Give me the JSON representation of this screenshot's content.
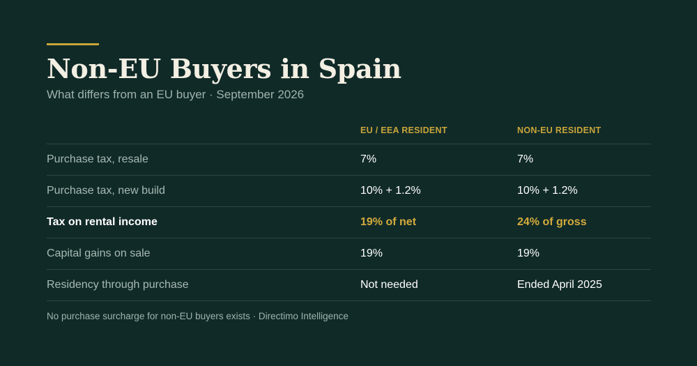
{
  "header": {
    "title": "Non-EU Buyers in Spain",
    "subtitle": "What differs from an EU buyer · September 2026"
  },
  "table": {
    "columns": [
      "",
      "EU / EEA RESIDENT",
      "NON-EU RESIDENT"
    ],
    "rows": [
      {
        "label": "Purchase tax, resale",
        "eu": "7%",
        "non_eu": "7%"
      },
      {
        "label": "Purchase tax, new build",
        "eu": "10% + 1.2%",
        "non_eu": "10% + 1.2%"
      },
      {
        "label": "Tax on rental income",
        "eu": "19% of net",
        "non_eu": "24% of gross"
      },
      {
        "label": "Capital gains on sale",
        "eu": "19%",
        "non_eu": "19%"
      },
      {
        "label": "Residency through purchase",
        "eu": "Not needed",
        "non_eu": "Ended April 2025"
      }
    ]
  },
  "footer": {
    "note": "No purchase surcharge for non-EU buyers exists  ·  Directimo Intelligence"
  },
  "colors": {
    "background": "#102a28",
    "accent": "#c9a53a",
    "title": "#f3efe3",
    "muted": "#9fb3ad"
  }
}
